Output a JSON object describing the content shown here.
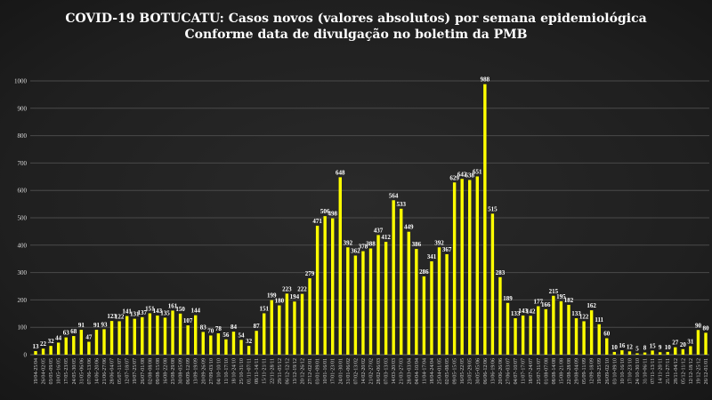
{
  "chart_data": {
    "type": "bar",
    "title": "COVID-19 BOTUCATU: Casos novos (valores absolutos) por semana epidemiológica",
    "subtitle": "Conforme data de divulgação no boletim da PMB",
    "xlabel": "",
    "ylabel": "",
    "ylim": [
      0,
      1000
    ],
    "yticks": [
      0,
      100,
      200,
      300,
      400,
      500,
      600,
      700,
      800,
      900,
      1000
    ],
    "grid": true,
    "bar_color": "#ffff00",
    "categories": [
      "19/04-25/04",
      "26/04-02/05",
      "03/05-09/05",
      "10/05-16/05",
      "17/05-23/05",
      "24/05-30/05",
      "31/05-06/06",
      "07/06-13/06",
      "14/06-20/06",
      "21/06-27/06",
      "28/06-04/07",
      "05/07-11/07",
      "12/07-18/07",
      "19/07-25/07",
      "26/07-01/08",
      "02/08-08/08",
      "09/08-15/08",
      "16/08-22/08",
      "23/08-29/08",
      "30/08-05/09",
      "06/09-12/09",
      "13/09-19/09",
      "20/09-26/09",
      "27/09-03/10",
      "04/10-10/10",
      "11/10-17/10",
      "18/10-24/10",
      "25/10-31/10",
      "01/11-07/11",
      "08/11-14/11",
      "15/11-21/11",
      "22/11-28/11",
      "29/11-05/12",
      "06/12-12/12",
      "13/12-19/12",
      "20/12-26/12",
      "27/12-02/01",
      "03/01-09/01",
      "10/01-16/01",
      "17/01-23/01",
      "24/01-30/01",
      "31/01-06/02",
      "07/02-13/02",
      "14/02-20/02",
      "21/02-27/02",
      "28/02-06/03",
      "07/03-13/03",
      "14/03-20/03",
      "21/03-27/03",
      "28/03-03/04",
      "04/04-10/04",
      "11/04-17/04",
      "18/04-24/04",
      "25/04-01/05",
      "02/05-08/05",
      "09/05-15/05",
      "16/05-22/05",
      "23/05-29/05",
      "30/05-05/06",
      "06/06-12/06",
      "13/06-19/06",
      "20/06-26/06",
      "27/06-03/07",
      "04/07-10/07",
      "11/07-17/07",
      "18/07-24/07",
      "25/07-31/07",
      "01/08-07/08",
      "08/08-14/08",
      "15/08-21/08",
      "22/08-28/08",
      "29/08-04/09",
      "05/09-11/09",
      "12/09-18/09",
      "19/09-25/09",
      "26/09-02/10",
      "03/10-09/10",
      "10/10-16/10",
      "17/10-23/10",
      "24/10-30/10",
      "31/10-06/11",
      "07/11-13/11",
      "14/11-20/11",
      "21/11-27/11",
      "28/11-04/12",
      "05/12-11/12",
      "12/12-18/12",
      "19/12-25/12",
      "26/12-01/01"
    ],
    "values": [
      13,
      22,
      32,
      44,
      63,
      68,
      91,
      47,
      91,
      93,
      123,
      122,
      141,
      131,
      137,
      151,
      143,
      135,
      161,
      150,
      107,
      144,
      83,
      70,
      78,
      56,
      84,
      54,
      32,
      87,
      151,
      199,
      180,
      223,
      194,
      222,
      279,
      471,
      506,
      498,
      648,
      392,
      362,
      378,
      388,
      437,
      412,
      564,
      533,
      449,
      386,
      286,
      341,
      392,
      367,
      629,
      642,
      638,
      651,
      988,
      515,
      283,
      189,
      133,
      143,
      142,
      177,
      166,
      215,
      195,
      182,
      133,
      122,
      162,
      111,
      60,
      10,
      16,
      12,
      5,
      8,
      15,
      9,
      10,
      27,
      20,
      31,
      90,
      80
    ]
  }
}
